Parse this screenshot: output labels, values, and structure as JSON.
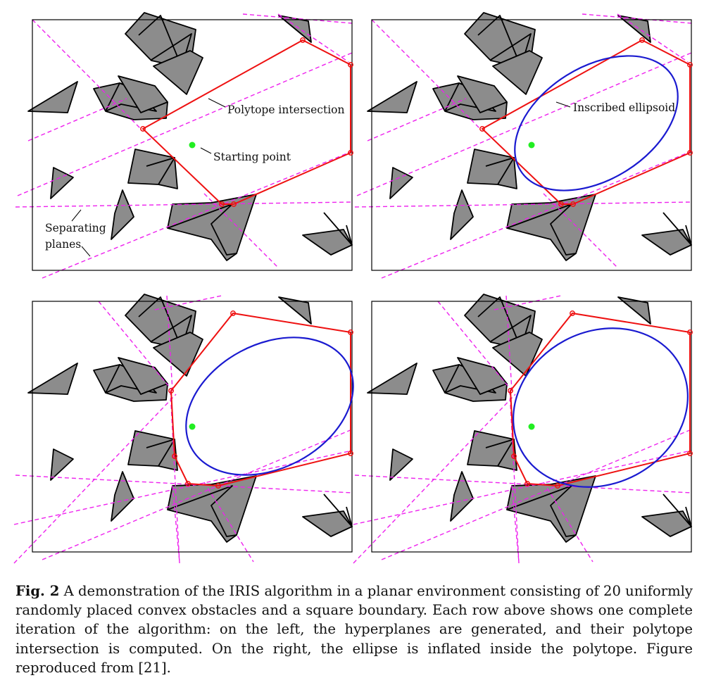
{
  "annotations": {
    "polytope_intersection": "Polytope intersection",
    "starting_point": "Starting point",
    "separating_planes": [
      "Separating",
      "planes"
    ],
    "inscribed_ellipsoid": "Inscribed ellipsoid"
  },
  "caption": {
    "label": "Fig. 2",
    "text": "A demonstration of the IRIS algorithm in a planar environment consisting of 20 uniformly randomly placed convex obstacles and a square boundary. Each row above shows one complete iteration of the algorithm: on the left, the hyperplanes are generated, and their polytope intersection is computed. On the right, the ellipse is inflated inside the polytope. Figure reproduced from [21]."
  },
  "colors": {
    "obstacle_fill": "#8c8c8c",
    "polytope": "#ee1111",
    "ellipse": "#1a1ad0",
    "start_point": "#22ee22",
    "separating_planes": "#ee22ee"
  }
}
